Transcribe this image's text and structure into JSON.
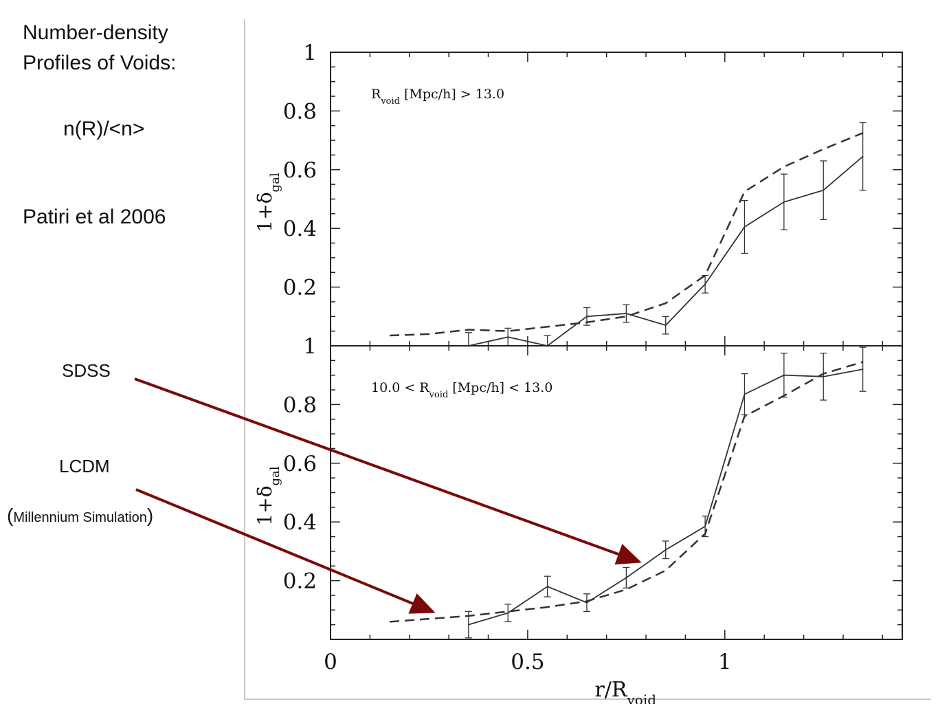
{
  "annotations": {
    "title_line1": "Number-density",
    "title_line2": "Profiles  of  Voids:",
    "ratio": "n(R)/<n>",
    "citation": "Patiri et al 2006",
    "sdss": "SDSS",
    "lcdm": "LCDM",
    "sim_open": "(",
    "sim_text": "Millennium Simulation",
    "sim_close": ")"
  },
  "colors": {
    "arrow": "#7a0a0a",
    "line": "#333333",
    "axis": "#222222"
  },
  "chart_data": [
    {
      "type": "line",
      "panel": "top",
      "annotation": "R_void [Mpc/h] > 13.0",
      "ylabel": "1+δ_gal",
      "xlabel": "",
      "xlim": [
        0,
        1.45
      ],
      "ylim": [
        0,
        1
      ],
      "yticks": [
        "0.2",
        "0.4",
        "0.6",
        "0.8",
        "1"
      ],
      "series": [
        {
          "style": "solid",
          "x": [
            0.35,
            0.45,
            0.55,
            0.65,
            0.75,
            0.85,
            0.95,
            1.05,
            1.15,
            1.25,
            1.35
          ],
          "y": [
            0.0,
            0.03,
            0.0,
            0.1,
            0.11,
            0.07,
            0.21,
            0.405,
            0.49,
            0.53,
            0.645
          ],
          "err": [
            0.045,
            0.03,
            0.035,
            0.03,
            0.03,
            0.03,
            0.03,
            0.09,
            0.095,
            0.1,
            0.115
          ]
        },
        {
          "style": "dashed",
          "x": [
            0.15,
            0.25,
            0.35,
            0.45,
            0.55,
            0.65,
            0.75,
            0.85,
            0.95,
            1.05,
            1.15,
            1.25,
            1.35
          ],
          "y": [
            0.035,
            0.04,
            0.055,
            0.05,
            0.065,
            0.08,
            0.1,
            0.145,
            0.24,
            0.525,
            0.61,
            0.67,
            0.725
          ]
        }
      ]
    },
    {
      "type": "line",
      "panel": "bottom",
      "annotation": "10.0 < R_void [Mpc/h] < 13.0",
      "ylabel": "1+δ_gal",
      "xlabel": "r/R_void",
      "xlim": [
        0,
        1.45
      ],
      "ylim": [
        0,
        1
      ],
      "xticks": [
        "0",
        "0.5",
        "1"
      ],
      "yticks": [
        "0.2",
        "0.4",
        "0.6",
        "0.8",
        "1"
      ],
      "series": [
        {
          "style": "solid",
          "x": [
            0.35,
            0.45,
            0.55,
            0.65,
            0.75,
            0.85,
            0.95,
            1.05,
            1.15,
            1.25,
            1.35
          ],
          "y": [
            0.05,
            0.09,
            0.18,
            0.125,
            0.21,
            0.305,
            0.385,
            0.835,
            0.9,
            0.895,
            0.92
          ],
          "err": [
            0.045,
            0.03,
            0.035,
            0.03,
            0.035,
            0.03,
            0.035,
            0.07,
            0.075,
            0.08,
            0.075
          ]
        },
        {
          "style": "dashed",
          "x": [
            0.15,
            0.25,
            0.35,
            0.45,
            0.55,
            0.65,
            0.75,
            0.85,
            0.95,
            1.05,
            1.15,
            1.25,
            1.35
          ],
          "y": [
            0.06,
            0.07,
            0.08,
            0.095,
            0.11,
            0.13,
            0.17,
            0.235,
            0.36,
            0.76,
            0.83,
            0.905,
            0.945
          ]
        }
      ]
    }
  ]
}
